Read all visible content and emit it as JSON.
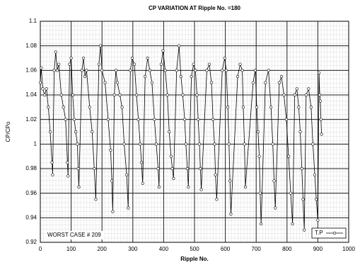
{
  "chart_data": {
    "type": "line",
    "title": "CP VARIATION AT Ripple No. =180",
    "x_label": "Ripple No.",
    "y_label": "CP/CPo",
    "annotation": "WORST CASE # 209",
    "x": [
      0,
      3,
      8,
      14,
      20,
      26,
      32,
      38,
      40,
      45,
      50,
      55,
      60,
      68,
      75,
      82,
      88,
      90,
      95,
      100,
      105,
      110,
      115,
      120,
      123,
      125,
      135,
      140,
      145,
      150,
      160,
      168,
      175,
      180,
      190,
      195,
      200,
      210,
      220,
      228,
      232,
      235,
      240,
      245,
      250,
      258,
      265,
      272,
      280,
      285,
      292,
      298,
      305,
      312,
      318,
      324,
      328,
      332,
      340,
      348,
      355,
      362,
      370,
      376,
      382,
      385,
      392,
      398,
      405,
      412,
      418,
      424,
      428,
      432,
      442,
      450,
      456,
      462,
      468,
      472,
      477,
      480,
      490,
      497,
      503,
      508,
      512,
      516,
      519,
      522,
      540,
      548,
      555,
      560,
      565,
      568,
      572,
      590,
      598,
      603,
      608,
      612,
      615,
      618,
      640,
      648,
      655,
      658,
      662,
      665,
      690,
      697,
      702,
      706,
      710,
      713,
      716,
      730,
      740,
      748,
      754,
      758,
      762,
      775,
      782,
      790,
      798,
      805,
      812,
      818,
      825,
      832,
      838,
      843,
      848,
      852,
      856,
      862,
      870,
      878,
      884,
      890,
      895,
      900,
      904,
      906,
      908,
      910,
      912
    ],
    "series": [
      {
        "name": "T.P",
        "color": "#000000",
        "values": [
          1.05,
          1.062,
          1.045,
          1.04,
          1.045,
          1.03,
          1.01,
          0.985,
          0.975,
          1.06,
          1.075,
          1.06,
          1.065,
          1.04,
          1.03,
          1.02,
          0.985,
          0.974,
          1.065,
          1.07,
          1.04,
          1.02,
          1.01,
          1.0,
          0.98,
          0.965,
          1.06,
          1.07,
          1.055,
          1.06,
          1.03,
          1.01,
          0.98,
          0.955,
          1.065,
          1.08,
          1.06,
          1.05,
          1.02,
          0.995,
          0.97,
          0.945,
          1.04,
          1.06,
          1.05,
          1.04,
          1.03,
          1.0,
          0.975,
          0.948,
          1.06,
          1.07,
          1.065,
          1.04,
          1.02,
          1.0,
          0.985,
          0.968,
          1.055,
          1.07,
          1.06,
          1.05,
          1.02,
          1.0,
          0.98,
          0.965,
          1.065,
          1.076,
          1.06,
          1.04,
          1.01,
          0.99,
          0.98,
          0.972,
          1.06,
          1.08,
          1.055,
          1.04,
          1.02,
          1.0,
          0.98,
          0.965,
          1.055,
          1.065,
          1.06,
          1.04,
          1.02,
          1.0,
          0.98,
          0.963,
          1.06,
          1.065,
          1.05,
          1.02,
          1.0,
          0.975,
          0.955,
          1.06,
          1.07,
          1.06,
          1.03,
          1.0,
          0.97,
          0.943,
          1.055,
          1.065,
          1.06,
          1.03,
          1.0,
          0.965,
          1.05,
          1.06,
          1.03,
          1.01,
          0.99,
          0.96,
          0.935,
          1.05,
          1.06,
          1.03,
          1.0,
          0.97,
          0.948,
          1.05,
          1.055,
          1.04,
          1.02,
          0.99,
          0.96,
          0.935,
          1.04,
          1.045,
          1.03,
          1.01,
          0.98,
          0.955,
          0.93,
          1.04,
          1.045,
          1.03,
          1.0,
          0.975,
          0.955,
          0.938,
          1.058,
          1.04,
          1.035,
          1.02,
          1.008
        ]
      }
    ],
    "xlim": [
      0,
      1000
    ],
    "ylim": [
      0.92,
      1.1
    ],
    "xticks": [
      0,
      100,
      200,
      300,
      400,
      500,
      600,
      700,
      800,
      900,
      1000
    ],
    "yticks": [
      0.92,
      0.94,
      0.96,
      0.98,
      1,
      1.02,
      1.04,
      1.06,
      1.08,
      1.1
    ],
    "grid": true,
    "legend": "lower right"
  }
}
